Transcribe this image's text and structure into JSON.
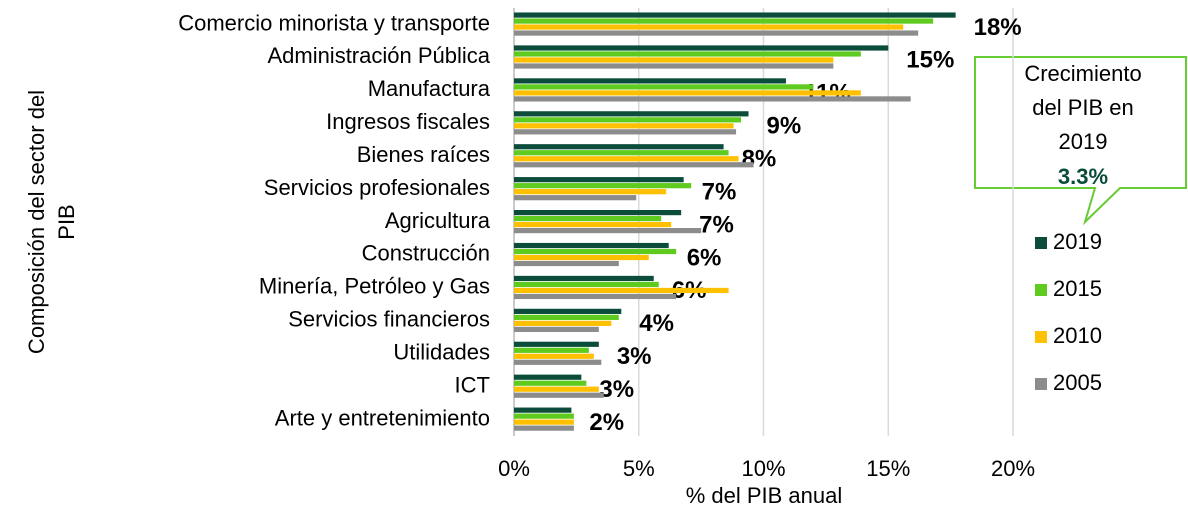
{
  "chart_data": {
    "type": "bar",
    "orientation": "horizontal",
    "xlabel": "% del PIB anual",
    "ylabel": [
      "Composición del sector del",
      "PIB"
    ],
    "categories": [
      "Comercio minorista y transporte",
      "Administración Pública",
      "Manufactura",
      "Ingresos fiscales",
      "Bienes raíces",
      "Servicios profesionales",
      "Agricultura",
      "Construcción",
      "Minería, Petróleo y Gas",
      "Servicios financieros",
      "Utilidades",
      "ICT",
      "Arte y entretenimiento"
    ],
    "series": [
      {
        "name": "2019",
        "color": "#0b4d3a",
        "values": [
          17.7,
          15.0,
          10.9,
          9.4,
          8.4,
          6.8,
          6.7,
          6.2,
          5.6,
          4.3,
          3.4,
          2.7,
          2.3
        ],
        "value_labels": [
          "18%",
          "15%",
          "11%",
          "9%",
          "8%",
          "7%",
          "7%",
          "6%",
          "6%",
          "4%",
          "3%",
          "3%",
          "2%"
        ]
      },
      {
        "name": "2015",
        "color": "#5ecb1e",
        "values": [
          16.8,
          13.9,
          12.0,
          9.1,
          8.6,
          7.1,
          5.9,
          6.5,
          5.8,
          4.2,
          3.0,
          2.9,
          2.4
        ]
      },
      {
        "name": "2010",
        "color": "#ffc000",
        "values": [
          15.6,
          12.8,
          13.9,
          8.8,
          9.0,
          6.1,
          6.3,
          5.4,
          8.6,
          3.9,
          3.2,
          3.4,
          2.4
        ]
      },
      {
        "name": "2005",
        "color": "#8c8c8c",
        "values": [
          16.2,
          12.8,
          15.9,
          8.9,
          9.6,
          4.9,
          7.5,
          4.2,
          6.5,
          3.4,
          3.5,
          3.6,
          2.4
        ]
      }
    ],
    "xlim": [
      0,
      20
    ],
    "xticks": [
      {
        "value": 0,
        "label": "0%"
      },
      {
        "value": 5,
        "label": "5%"
      },
      {
        "value": 10,
        "label": "10%"
      },
      {
        "value": 15,
        "label": "15%"
      },
      {
        "value": 20,
        "label": "20%"
      }
    ],
    "grid": true,
    "legend": "right",
    "annotation": {
      "lines": [
        "Crecimiento",
        "del PIB en",
        "2019"
      ],
      "value": "3.3%"
    }
  }
}
